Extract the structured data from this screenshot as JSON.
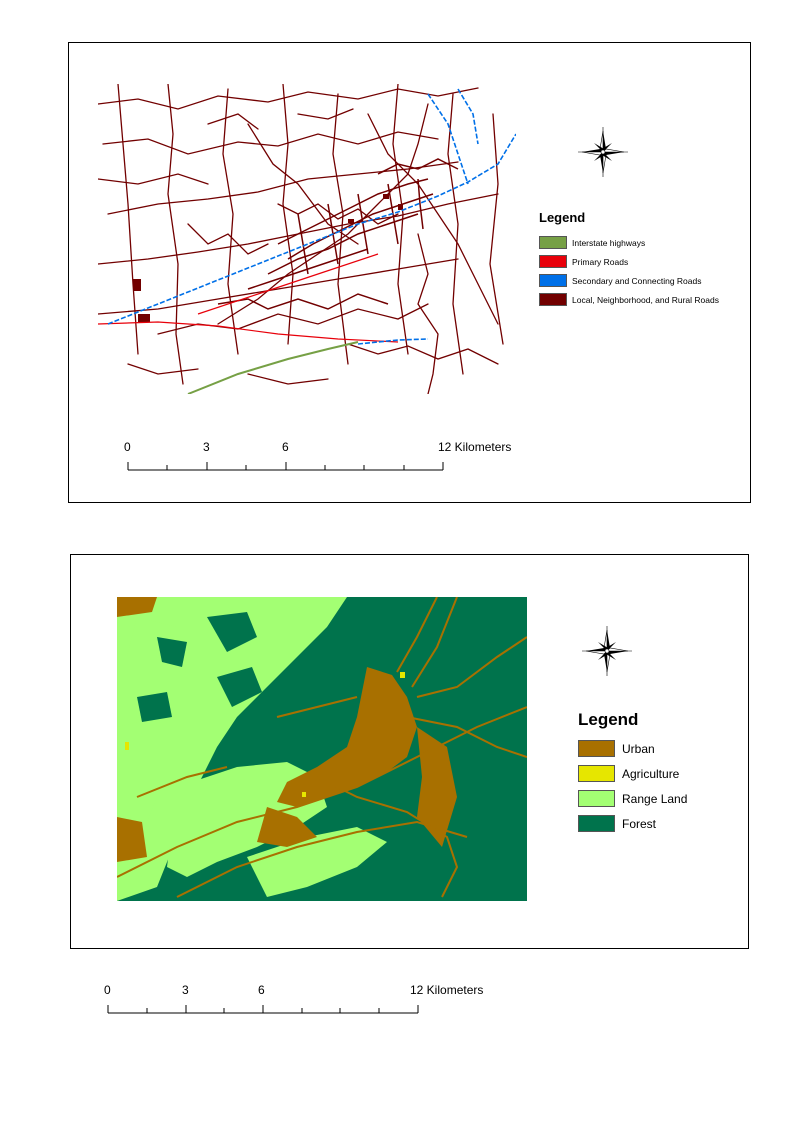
{
  "map1": {
    "legend": {
      "title": "Legend",
      "items": [
        {
          "label": "Interstate highways",
          "color": "#76a045"
        },
        {
          "label": "Primary Roads",
          "color": "#e8000a"
        },
        {
          "label": "Secondary and Connecting Roads",
          "color": "#0070e8"
        },
        {
          "label": "Local, Neighborhood, and Rural Roads",
          "color": "#720000"
        }
      ]
    },
    "compass_icon": "north-arrow-compass-rose",
    "scale": {
      "labels": [
        "0",
        "3",
        "6",
        "12 Kilometers"
      ]
    }
  },
  "map2": {
    "legend": {
      "title": "Legend",
      "items": [
        {
          "label": "Urban",
          "color": "#a87000"
        },
        {
          "label": "Agriculture",
          "color": "#e6e600"
        },
        {
          "label": "Range Land",
          "color": "#a3ff73"
        },
        {
          "label": "Forest",
          "color": "#00734c"
        }
      ]
    },
    "compass_icon": "north-arrow-compass-rose",
    "scale": {
      "labels": [
        "0",
        "3",
        "6",
        "12 Kilometers"
      ]
    }
  }
}
